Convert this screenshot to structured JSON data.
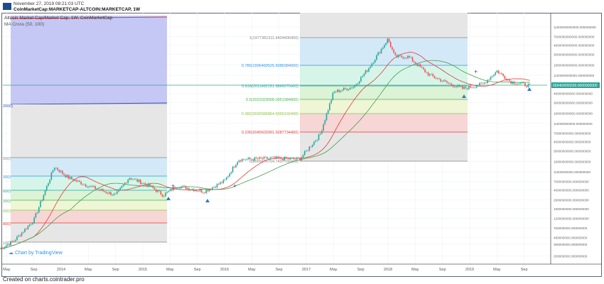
{
  "header": {
    "date": "November 27, 2019 08:21:03 UTC",
    "symbol": "CoinMarketCap:MARKETCAP-ALTCOIN:MARKETCAP, 1W"
  },
  "legend": {
    "series": "Altcoin Market Cap/Market Cap, 1W, CoinMarketCap",
    "indicator": "MA Cross (50, 100)"
  },
  "branding": {
    "tradingview": "Chart by TradingView",
    "footer": "Created on charts.cointrader.pro"
  },
  "colors": {
    "up": "#26a69a",
    "down": "#ef5350",
    "ma_fast": "#e53935",
    "ma_slow": "#43a047",
    "price_label": "#26a69a"
  },
  "chart_data": {
    "type": "candlestick",
    "scale": "log",
    "grid": true,
    "x_ticks": [
      "May",
      "Sep",
      "2014",
      "May",
      "Sep",
      "2015",
      "May",
      "Sep",
      "2016",
      "May",
      "Sep",
      "2017",
      "May",
      "Sep",
      "2018",
      "May",
      "Sep",
      "2019",
      "May",
      "Sep"
    ],
    "x_tick_dates": [
      "2013-05",
      "2013-09",
      "2014-01",
      "2014-05",
      "2014-09",
      "2015-01",
      "2015-05",
      "2015-09",
      "2016-01",
      "2016-05",
      "2016-09",
      "2017-01",
      "2017-05",
      "2017-09",
      "2018-01",
      "2018-05",
      "2018-09",
      "2019-01",
      "2019-05",
      "2019-09"
    ],
    "y_ticks": [
      {
        "v": 11000000000000.0,
        "label": "11000000000000.000000000"
      },
      {
        "v": 7000000000000.0,
        "label": "7000000000000.000000000"
      },
      {
        "v": 4600000000000.0,
        "label": "4600000000000.000000000"
      },
      {
        "v": 3000000000000.0,
        "label": "3000000000000.000000000"
      },
      {
        "v": 1800000000000.0,
        "label": "1800000000000.000000000"
      },
      {
        "v": 1100000000000.0,
        "label": "1100000000000.000000000"
      },
      {
        "v": 460000000000.0,
        "label": "460000000000.000000000"
      },
      {
        "v": 300000000000.0,
        "label": "300000000000.000000000"
      },
      {
        "v": 180000000000.0,
        "label": "180000000000.000000000"
      },
      {
        "v": 110000000000.0,
        "label": "110000000000.000000000"
      },
      {
        "v": 70000000000.0,
        "label": "70000000000.000000000"
      },
      {
        "v": 46000000000.0,
        "label": "46000000000.000000000"
      },
      {
        "v": 30000000000.0,
        "label": "30000000000.000000000"
      },
      {
        "v": 18000000000.0,
        "label": "18000000000.000000000"
      },
      {
        "v": 11000000000.0,
        "label": "11000000000.000000000"
      },
      {
        "v": 7000000000.0,
        "label": "7000000000.000000000"
      },
      {
        "v": 4600000000.0,
        "label": "4600000000.000000000"
      },
      {
        "v": 2900000000.0,
        "label": "2900000000.000000000"
      },
      {
        "v": 1900000000.0,
        "label": "1900000000.000000000"
      },
      {
        "v": 1200000000.0,
        "label": "1200000000.000000000"
      },
      {
        "v": 760000000.0,
        "label": "760000000.000000000"
      },
      {
        "v": 480000000.0,
        "label": "480000000.000000000"
      },
      {
        "v": 350000000.0,
        "label": "350000000.000000000"
      },
      {
        "v": 200000000.0,
        "label": "200000000.000000000"
      }
    ],
    "last_price": {
      "v": 659460000000.0,
      "label": "659460055599.0000000000"
    },
    "series": [
      [
        "2013-04",
        280000000.0
      ],
      [
        "2013-06",
        400000000.0
      ],
      [
        "2013-09",
        1100000000.0
      ],
      [
        "2013-11",
        6000000000.0
      ],
      [
        "2013-12",
        14000000000.0
      ],
      [
        "2014-02",
        8400000000.0
      ],
      [
        "2014-05",
        5600000000.0
      ],
      [
        "2014-09",
        3600000000.0
      ],
      [
        "2014-11",
        8400000000.0
      ],
      [
        "2015-02",
        5600000000.0
      ],
      [
        "2015-04",
        3600000000.0
      ],
      [
        "2015-06",
        5600000000.0
      ],
      [
        "2015-10",
        4300000000.0
      ],
      [
        "2016-01",
        7100000000.0
      ],
      [
        "2016-03",
        19600000000.0
      ],
      [
        "2016-08",
        21000000000.0
      ],
      [
        "2016-12",
        20000000000.0
      ],
      [
        "2017-03",
        64000000000.0
      ],
      [
        "2017-05",
        490000000000.0
      ],
      [
        "2017-08",
        640000000000.0
      ],
      [
        "2017-10",
        1440000000000.0
      ],
      [
        "2018-01",
        6200000000000.0
      ],
      [
        "2018-02",
        2650000000000.0
      ],
      [
        "2018-04",
        2650000000000.0
      ],
      [
        "2018-07",
        1130000000000.0
      ],
      [
        "2018-10",
        730000000000.0
      ],
      [
        "2018-12",
        580000000000.0
      ],
      [
        "2019-03",
        730000000000.0
      ],
      [
        "2019-05",
        1350000000000.0
      ],
      [
        "2019-07",
        810000000000.0
      ],
      [
        "2019-10",
        660000000000.0
      ]
    ],
    "fib_right": [
      {
        "label": "1(1977381311.4404406400)",
        "color": "#888888"
      },
      {
        "label": "0.786(1996490525.6086384000)",
        "color": "#2e95e8"
      },
      {
        "label": "0.618(2011492151.6846070400)",
        "color": "#26a69a"
      },
      {
        "label": "0.5(2022029008.0951084800)",
        "color": "#4caf50"
      },
      {
        "label": "0.382(2032565864.5056102400)",
        "color": "#8bc34a"
      },
      {
        "label": "0.236(2045602991.9287734400)",
        "color": "#e53935"
      },
      {
        "label": "0(2066876704.7497766400)",
        "color": "#888888"
      }
    ],
    "fib_left": [
      {
        "label": "2000)",
        "color": "#3f51b5"
      },
      {
        "label": "500)",
        "color": "#888888"
      },
      {
        "label": "300)",
        "color": "#2e95e8"
      },
      {
        "label": "600)",
        "color": "#26a69a"
      },
      {
        "label": "300)",
        "color": "#4caf50"
      },
      {
        "label": "000)",
        "color": "#8bc34a"
      },
      {
        "label": "800)",
        "color": "#e53935"
      },
      {
        "label": "100)",
        "color": "#888888"
      }
    ]
  }
}
